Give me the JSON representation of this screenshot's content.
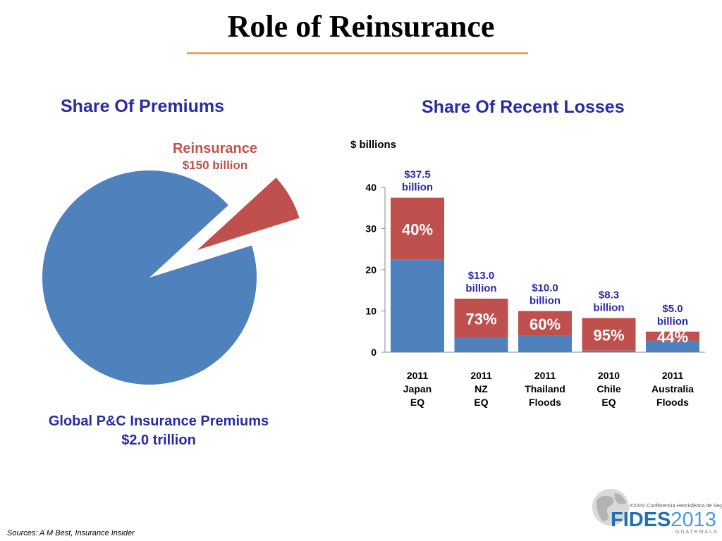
{
  "slide": {
    "title": "Role of Reinsurance",
    "sources": "Sources: A M Best, Insurance Insider"
  },
  "pie": {
    "title": "Share Of Premiums",
    "reinsurance_label": "Reinsurance",
    "reinsurance_value": "$150 billion",
    "global_label": "Global P&C Insurance Premiums",
    "global_value": "$2.0 trillion"
  },
  "bars": {
    "title": "Share Of Recent Losses",
    "units": "$ billions"
  },
  "logo": {
    "subtitle": "XXXIV Conferencia Hemisférica de Seguros",
    "name": "FIDES",
    "year": "2013",
    "city": "GUATEMALA"
  },
  "colors": {
    "blue": "#4f81bd",
    "red": "#c0504d",
    "title_blue": "#2a2aa3",
    "rule_orange": "#ee8a3c"
  },
  "chart_data": [
    {
      "type": "pie",
      "slices": [
        {
          "name": "Reinsurance",
          "value": 0.15
        },
        {
          "name": "Global P&C Insurance Premiums",
          "value": 2.0
        }
      ]
    },
    {
      "type": "bar",
      "stacked": true,
      "categories": [
        [
          "2011",
          "Japan",
          "EQ"
        ],
        [
          "2011",
          "NZ",
          "EQ"
        ],
        [
          "2011",
          "Thailand",
          "Floods"
        ],
        [
          "2010",
          "Chile",
          "EQ"
        ],
        [
          "2011",
          "Australia",
          "Floods"
        ]
      ],
      "totals": [
        37.5,
        13.0,
        10.0,
        8.3,
        5.0
      ],
      "total_labels": [
        [
          "$37.5",
          "billion"
        ],
        [
          "$13.0",
          "billion"
        ],
        [
          "$10.0",
          "billion"
        ],
        [
          "$8.3",
          "billion"
        ],
        [
          "$5.0",
          "billion"
        ]
      ],
      "reinsurance_share_labels": [
        "40%",
        "73%",
        "60%",
        "95%",
        "44%"
      ],
      "series": [
        {
          "values": [
            22.5,
            3.5,
            4.0,
            0.4,
            2.8
          ],
          "color": "#4f81bd"
        },
        {
          "values": [
            15.0,
            9.5,
            6.0,
            7.9,
            2.2
          ],
          "color": "#c0504d"
        }
      ],
      "yticks": [
        0,
        10,
        20,
        30,
        40
      ],
      "ylim": [
        0,
        40
      ],
      "grid": false
    }
  ]
}
